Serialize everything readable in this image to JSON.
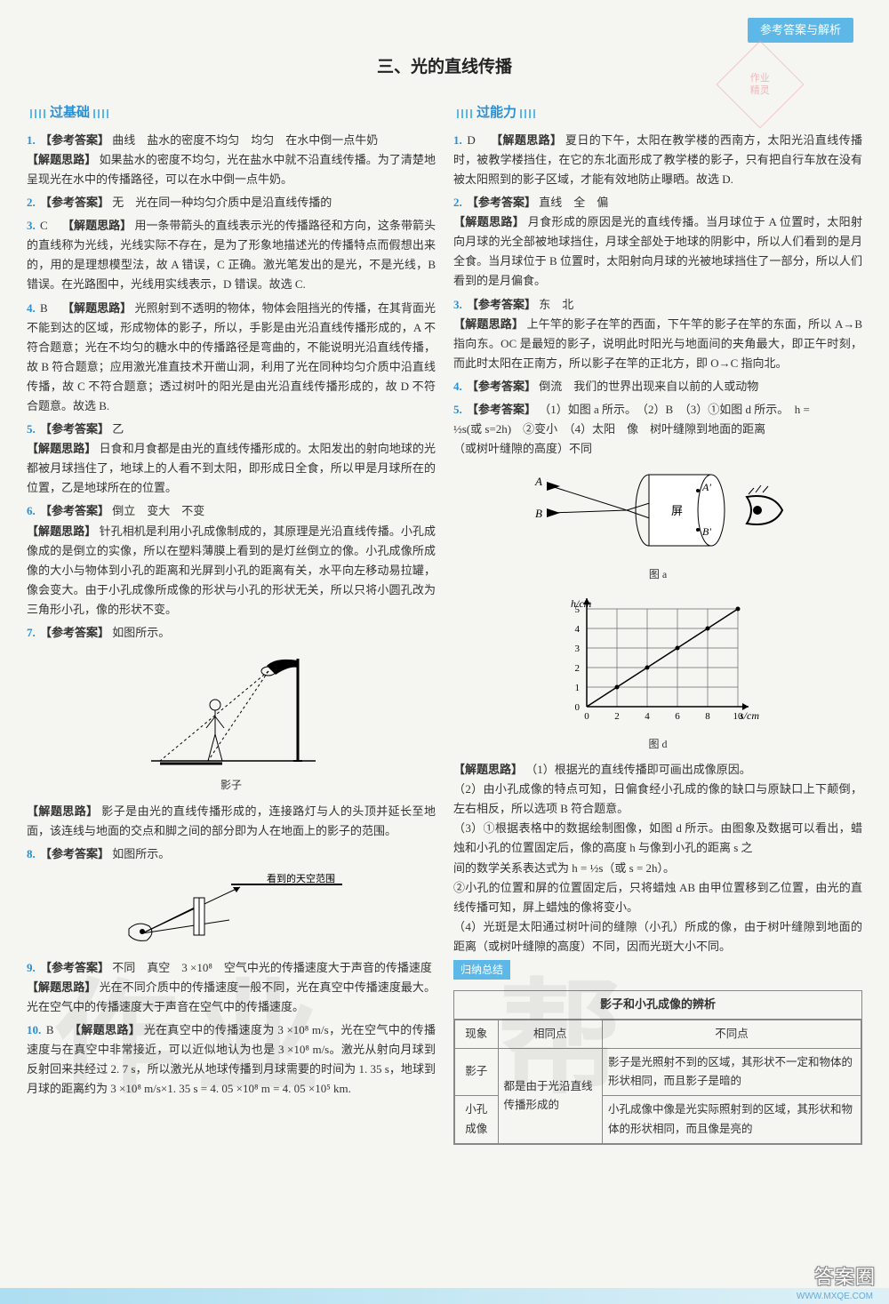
{
  "header": {
    "tag": "参考答案与解析"
  },
  "chapter_title": "三、光的直线传播",
  "stamp": {
    "line1": "作业",
    "line2": "精灵"
  },
  "left_section": {
    "title": "过基础",
    "items": [
      {
        "num": "1.",
        "ans": "曲线　盐水的密度不均匀　均匀　在水中倒一点牛奶",
        "explain": "如果盐水的密度不均匀，光在盐水中就不沿直线传播。为了清楚地呈现光在水中的传播路径，可以在水中倒一点牛奶。"
      },
      {
        "num": "2.",
        "ans": "无　光在同一种均匀介质中是沿直线传播的"
      },
      {
        "num": "3.",
        "letter": "C",
        "explain": "用一条带箭头的直线表示光的传播路径和方向，这条带箭头的直线称为光线，光线实际不存在，是为了形象地描述光的传播特点而假想出来的，用的是理想模型法，故 A 错误，C 正确。激光笔发出的是光，不是光线，B 错误。在光路图中，光线用实线表示，D 错误。故选 C."
      },
      {
        "num": "4.",
        "letter": "B",
        "explain": "光照射到不透明的物体，物体会阻挡光的传播，在其背面光不能到达的区域，形成物体的影子，所以，手影是由光沿直线传播形成的，A 不符合题意；光在不均匀的糖水中的传播路径是弯曲的，不能说明光沿直线传播，故 B 符合题意；应用激光准直技术开凿山洞，利用了光在同种均匀介质中沿直线传播，故 C 不符合题意；透过树叶的阳光是由光沿直线传播形成的，故 D 不符合题意。故选 B."
      },
      {
        "num": "5.",
        "ans": "乙",
        "explain": "日食和月食都是由光的直线传播形成的。太阳发出的射向地球的光都被月球挡住了，地球上的人看不到太阳，即形成日全食，所以甲是月球所在的位置，乙是地球所在的位置。"
      },
      {
        "num": "6.",
        "ans": "倒立　变大　不变",
        "explain": "针孔相机是利用小孔成像制成的，其原理是光沿直线传播。小孔成像成的是倒立的实像，所以在塑料薄膜上看到的是灯丝倒立的像。小孔成像所成像的大小与物体到小孔的距离和光屏到小孔的距离有关，水平向左移动易拉罐，像会变大。由于小孔成像所成像的形状与小孔的形状无关，所以只将小圆孔改为三角形小孔，像的形状不变。"
      },
      {
        "num": "7.",
        "ans": "如图所示。",
        "fig": "street-lamp",
        "fig_caption": "影子",
        "explain": "影子是由光的直线传播形成的，连接路灯与人的头顶并延长至地面，该连线与地面的交点和脚之间的部分即为人在地面上的影子的范围。"
      },
      {
        "num": "8.",
        "ans": "如图所示。",
        "fig": "hand-eye",
        "fig_label": "看到的天空范围"
      },
      {
        "num": "9.",
        "ans": "不同　真空　3 ×10⁸　空气中光的传播速度大于声音的传播速度",
        "explain": "光在不同介质中的传播速度一般不同，光在真空中传播速度最大。光在空气中的传播速度大于声音在空气中的传播速度。"
      },
      {
        "num": "10.",
        "letter": "B",
        "explain": "光在真空中的传播速度为 3 ×10⁸ m/s，光在空气中的传播速度与在真空中非常接近，可以近似地认为也是 3 ×10⁸ m/s。激光从射向月球到反射回来共经过 2. 7 s，所以激光从地球传播到月球需要的时间为 1. 35 s，地球到月球的距离约为 3 ×10⁸ m/s×1. 35 s = 4. 05 ×10⁸ m = 4. 05 ×10⁵ km."
      }
    ]
  },
  "right_section": {
    "title": "过能力",
    "items": [
      {
        "num": "1.",
        "letter": "D",
        "explain": "夏日的下午，太阳在教学楼的西南方，太阳光沿直线传播时，被教学楼挡住，在它的东北面形成了教学楼的影子，只有把自行车放在没有被太阳照到的影子区域，才能有效地防止曝晒。故选 D."
      },
      {
        "num": "2.",
        "ans": "直线　全　偏",
        "explain": "月食形成的原因是光的直线传播。当月球位于 A 位置时，太阳射向月球的光全部被地球挡住，月球全部处于地球的阴影中，所以人们看到的是月全食。当月球位于 B 位置时，太阳射向月球的光被地球挡住了一部分，所以人们看到的是月偏食。"
      },
      {
        "num": "3.",
        "ans": "东　北",
        "explain": "上午竿的影子在竿的西面，下午竿的影子在竿的东面，所以 A→B 指向东。OC 是最短的影子，说明此时阳光与地面间的夹角最大，即正午时刻，而此时太阳在正南方，所以影子在竿的正北方，即 O→C 指向北。"
      },
      {
        "num": "4.",
        "ans": "倒流　我们的世界出现来自以前的人或动物"
      },
      {
        "num": "5.",
        "ans_multi": "（1）如图 a 所示。　（2）B　（3）①如图 d 所示。　h =",
        "formula_line": "½s(或 s=2h)　②变小　（4）太阳　像　树叶缝隙到地面的距离",
        "paren": "（或树叶缝隙的高度）不同",
        "fig_a_caption": "图 a",
        "fig_d_caption": "图 d",
        "explain_label": "【解题思路】",
        "explain_1": "（1）根据光的直线传播即可画出成像原因。",
        "explain_2": "（2）由小孔成像的特点可知，日偏食经小孔成的像的缺口与原缺口上下颠倒，左右相反，所以选项 B 符合题意。",
        "explain_3": "（3）①根据表格中的数据绘制图像，如图 d 所示。由图象及数据可以看出，蜡烛和小孔的位置固定后，像的高度 h 与像到小孔的距离 s 之",
        "explain_3b": "间的数学关系表达式为 h = ½s（或 s = 2h）。",
        "explain_3c": "②小孔的位置和屏的位置固定后，只将蜡烛 AB 由甲位置移到乙位置，由光的直线传播可知，屏上蜡烛的像将变小。",
        "explain_4": "（4）光斑是太阳通过树叶间的缝隙（小孔）所成的像，由于树叶缝隙到地面的距离（或树叶缝隙的高度）不同，因而光斑大小不同。"
      }
    ],
    "chart_d": {
      "xlabel": "s/cm",
      "ylabel": "h/cm",
      "x_ticks": [
        0,
        2,
        4,
        6,
        8,
        10
      ],
      "y_ticks": [
        0,
        1,
        2,
        3,
        4,
        5
      ],
      "x_values": [
        2,
        4,
        6,
        8,
        10
      ],
      "y_values": [
        1,
        2,
        3,
        4,
        5
      ],
      "line_color": "#000",
      "grid_color": "#666",
      "bg_color": "#ffffff"
    }
  },
  "summary": {
    "tag": "归纳总结",
    "title": "影子和小孔成像的辨析",
    "headers": [
      "现象",
      "相同点",
      "不同点"
    ],
    "rows": [
      {
        "phenomenon": "影子",
        "same": "都是由于光沿直线传播形成的",
        "diff": "影子是光照射不到的区域，其形状不一定和物体的形状相同，而且影子是暗的"
      },
      {
        "phenomenon": "小孔成像",
        "diff": "小孔成像中像是光实际照射到的区域，其形状和物体的形状相同，而且像是亮的"
      }
    ]
  },
  "watermarks": {
    "text1": "作业",
    "text2": "帮"
  },
  "corner": {
    "logo": "答案圈",
    "url": "WWW.MXQE.COM"
  }
}
